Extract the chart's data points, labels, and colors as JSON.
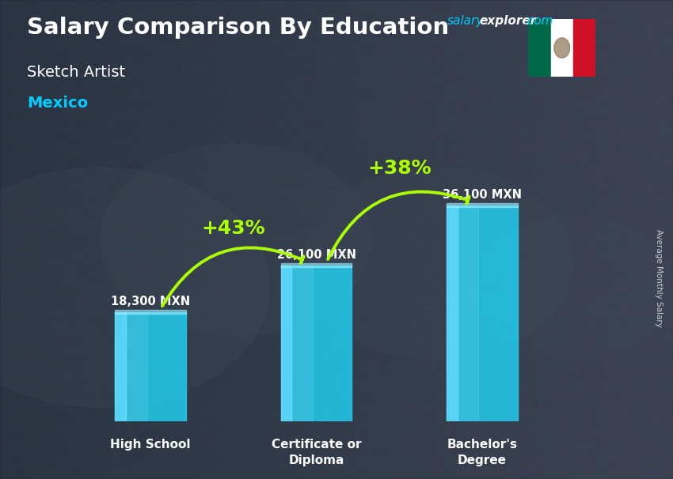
{
  "title": "Salary Comparison By Education",
  "subtitle": "Sketch Artist",
  "location": "Mexico",
  "ylabel": "Average Monthly Salary",
  "categories": [
    "High School",
    "Certificate or\nDiploma",
    "Bachelor's\nDegree"
  ],
  "values": [
    18300,
    26100,
    36100
  ],
  "value_labels": [
    "18,300 MXN",
    "26,100 MXN",
    "36,100 MXN"
  ],
  "pct_labels": [
    "+43%",
    "+38%"
  ],
  "bar_color_main": "#00ccee",
  "bar_color_light": "#55ddff",
  "bar_color_mid": "#00aacc",
  "pct_color": "#aaff00",
  "title_color": "#ffffff",
  "subtitle_color": "#ffffff",
  "location_color": "#00ccff",
  "label_color": "#ffffff",
  "bg_color": "#3a4a5a",
  "arrow_color": "#88ee00",
  "wm_salary_color": "#00ccff",
  "wm_explorer_color": "#ffffff",
  "wm_com_color": "#00ccff",
  "ylim": [
    0,
    44000
  ],
  "bar_width": 0.12,
  "x_positions": [
    0.22,
    0.5,
    0.78
  ],
  "flag_green": "#006847",
  "flag_white": "#ffffff",
  "flag_red": "#ce1126"
}
